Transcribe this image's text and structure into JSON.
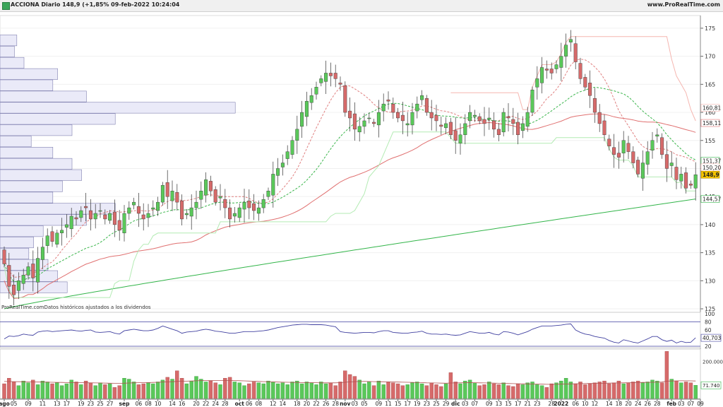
{
  "header": {
    "title": "ACCIONA Diario 148,9 (+1,85% 09-feb-2022 10:24:04",
    "brand": "www.ProRealTime.com"
  },
  "footnote": "ProRealTime.comDatos históricos ajustados a los dividendos",
  "colors": {
    "up": "#5ac85a",
    "down": "#d66a6a",
    "sma_long": "#33b54a",
    "sma_mid": "#e07070",
    "band_upper": "#f5b6b0",
    "band_lower": "#b3ebb3",
    "dash_red": "#e08080",
    "dash_green": "#39b54a",
    "volume_profile_fill": "#eaeaf8",
    "volume_profile_stroke": "#8080b0",
    "oscillator_line": "#4040a0",
    "oscillator_high": "#b05060"
  },
  "icons": {
    "app": "green-square-icon"
  },
  "chart_data": {
    "type": "candlestick",
    "price_axis": {
      "range": [
        124.5,
        176.5
      ],
      "ticks": [
        125,
        130,
        135,
        140,
        145,
        150,
        155,
        160,
        165,
        170,
        175
      ]
    },
    "x_labels": [
      {
        "i": 0,
        "t": "ago",
        "bold": true
      },
      {
        "i": 2,
        "t": "05"
      },
      {
        "i": 5,
        "t": "09"
      },
      {
        "i": 8,
        "t": "11"
      },
      {
        "i": 11,
        "t": "13"
      },
      {
        "i": 13,
        "t": "17"
      },
      {
        "i": 16,
        "t": "19"
      },
      {
        "i": 18,
        "t": "23"
      },
      {
        "i": 20,
        "t": "25"
      },
      {
        "i": 22,
        "t": "27"
      },
      {
        "i": 25,
        "t": "sep",
        "bold": true
      },
      {
        "i": 28,
        "t": "06"
      },
      {
        "i": 30,
        "t": "08"
      },
      {
        "i": 32,
        "t": "10"
      },
      {
        "i": 35,
        "t": "14"
      },
      {
        "i": 37,
        "t": "16"
      },
      {
        "i": 40,
        "t": "20"
      },
      {
        "i": 42,
        "t": "22"
      },
      {
        "i": 44,
        "t": "24"
      },
      {
        "i": 46,
        "t": "28"
      },
      {
        "i": 49,
        "t": "oct",
        "bold": true
      },
      {
        "i": 51,
        "t": "06"
      },
      {
        "i": 53,
        "t": "08"
      },
      {
        "i": 56,
        "t": "12"
      },
      {
        "i": 58,
        "t": "14"
      },
      {
        "i": 61,
        "t": "18"
      },
      {
        "i": 63,
        "t": "20"
      },
      {
        "i": 65,
        "t": "22"
      },
      {
        "i": 67,
        "t": "26"
      },
      {
        "i": 69,
        "t": "28"
      },
      {
        "i": 71,
        "t": "nov",
        "bold": true
      },
      {
        "i": 73,
        "t": "03"
      },
      {
        "i": 75,
        "t": "05"
      },
      {
        "i": 78,
        "t": "09"
      },
      {
        "i": 80,
        "t": "11"
      },
      {
        "i": 82,
        "t": "15"
      },
      {
        "i": 84,
        "t": "17"
      },
      {
        "i": 86,
        "t": "19"
      },
      {
        "i": 88,
        "t": "23"
      },
      {
        "i": 90,
        "t": "25"
      },
      {
        "i": 92,
        "t": "29"
      },
      {
        "i": 94,
        "t": "dic",
        "bold": true
      },
      {
        "i": 96,
        "t": "03"
      },
      {
        "i": 98,
        "t": "07"
      },
      {
        "i": 101,
        "t": "09"
      },
      {
        "i": 103,
        "t": "13"
      },
      {
        "i": 105,
        "t": "15"
      },
      {
        "i": 107,
        "t": "17"
      },
      {
        "i": 109,
        "t": "21"
      },
      {
        "i": 111,
        "t": "23"
      },
      {
        "i": 114,
        "t": "28"
      },
      {
        "i": 116,
        "t": "2022",
        "bold": true
      },
      {
        "i": 119,
        "t": "06"
      },
      {
        "i": 121,
        "t": "10"
      },
      {
        "i": 123,
        "t": "12"
      },
      {
        "i": 126,
        "t": "14"
      },
      {
        "i": 128,
        "t": "18"
      },
      {
        "i": 130,
        "t": "20"
      },
      {
        "i": 132,
        "t": "24"
      },
      {
        "i": 134,
        "t": "26"
      },
      {
        "i": 136,
        "t": "28"
      },
      {
        "i": 139,
        "t": "feb",
        "bold": true
      },
      {
        "i": 141,
        "t": "03"
      },
      {
        "i": 143,
        "t": "07"
      },
      {
        "i": 145,
        "t": "09"
      }
    ],
    "closes": [
      133,
      129,
      127.5,
      130,
      131,
      132.5,
      130.5,
      134,
      136,
      138,
      137,
      138.5,
      139,
      140,
      141.5,
      141,
      142.5,
      143,
      141,
      142,
      142.5,
      141,
      142,
      140,
      139,
      142,
      143,
      144,
      142,
      141,
      142,
      143,
      144,
      147,
      145,
      146,
      144,
      141,
      142,
      143,
      144,
      146,
      148,
      146,
      144,
      145,
      143,
      141,
      142,
      143,
      144,
      143,
      142.5,
      143,
      144.5,
      146,
      149,
      150,
      151,
      153,
      155,
      157,
      160,
      162,
      163,
      164.5,
      166,
      167,
      166.5,
      166,
      165,
      160,
      159,
      157,
      157.5,
      158.5,
      159,
      158,
      160,
      161.5,
      162,
      160,
      159,
      158.5,
      158,
      160,
      161.5,
      163,
      160,
      159,
      158.5,
      157.5,
      158,
      156,
      155,
      156,
      158,
      160,
      159.5,
      158.5,
      158,
      159,
      157,
      156,
      160,
      159,
      158,
      156,
      158,
      160,
      164,
      166,
      168,
      167.5,
      167,
      168.5,
      170,
      172,
      173,
      169,
      166,
      164.5,
      163,
      160,
      158,
      156,
      154,
      152.5,
      152,
      155,
      153,
      151,
      149,
      151,
      153,
      155,
      156,
      152.5,
      150,
      151,
      148,
      149,
      146.5,
      147,
      148.9
    ],
    "sma_long_series": {
      "range": [
        125,
        144.57
      ],
      "label": "144,57"
    },
    "sma_mid_series": {
      "range": [
        131.5,
        158.11
      ],
      "label": "158,11"
    },
    "band_upper_series": {
      "label": "160,81"
    },
    "band_mid_series": {
      "label": "150,20"
    },
    "band_lower_series": {
      "label": "151,37"
    },
    "last_price_label": "148,9",
    "volume_profile_rows": [
      {
        "price": 128.8,
        "vol": 0.28
      },
      {
        "price": 130.8,
        "vol": 0.24
      },
      {
        "price": 132.8,
        "vol": 0.2
      },
      {
        "price": 134.8,
        "vol": 0.12
      },
      {
        "price": 136.8,
        "vol": 0.14
      },
      {
        "price": 138.8,
        "vol": 0.18
      },
      {
        "price": 140.8,
        "vol": 0.36
      },
      {
        "price": 142.8,
        "vol": 0.48
      },
      {
        "price": 144.8,
        "vol": 0.22
      },
      {
        "price": 146.8,
        "vol": 0.26
      },
      {
        "price": 148.8,
        "vol": 0.34
      },
      {
        "price": 150.8,
        "vol": 0.3
      },
      {
        "price": 152.8,
        "vol": 0.22
      },
      {
        "price": 154.8,
        "vol": 0.13
      },
      {
        "price": 156.8,
        "vol": 0.3
      },
      {
        "price": 158.8,
        "vol": 0.48
      },
      {
        "price": 160.8,
        "vol": 0.98
      },
      {
        "price": 162.8,
        "vol": 0.36
      },
      {
        "price": 164.8,
        "vol": 0.22
      },
      {
        "price": 166.8,
        "vol": 0.24
      },
      {
        "price": 168.8,
        "vol": 0.1
      },
      {
        "price": 170.8,
        "vol": 0.06
      },
      {
        "price": 172.8,
        "vol": 0.07
      }
    ],
    "oscillator": {
      "range": [
        20,
        100
      ],
      "ticks": [
        20,
        60,
        80,
        100
      ],
      "value_label": "40,703",
      "values": [
        38,
        45,
        44,
        46,
        50,
        48,
        47,
        55,
        57,
        58,
        56,
        57,
        58,
        59,
        60,
        58,
        57,
        59,
        60,
        55,
        54,
        55,
        56,
        52,
        50,
        58,
        60,
        62,
        60,
        58,
        58,
        60,
        64,
        70,
        66,
        62,
        58,
        52,
        55,
        56,
        57,
        60,
        62,
        60,
        57,
        56,
        54,
        52,
        52,
        54,
        56,
        56,
        56,
        57,
        58,
        60,
        63,
        66,
        68,
        70,
        72,
        73,
        74,
        74,
        73,
        73,
        73,
        72,
        70,
        68,
        56,
        54,
        53,
        52,
        53,
        54,
        54,
        53,
        56,
        58,
        58,
        54,
        53,
        52,
        52,
        54,
        55,
        57,
        52,
        50,
        50,
        49,
        50,
        48,
        47,
        48,
        52,
        56,
        54,
        52,
        52,
        54,
        50,
        48,
        56,
        55,
        52,
        48,
        52,
        56,
        62,
        66,
        70,
        70,
        70,
        71,
        72,
        74,
        75,
        60,
        54,
        50,
        48,
        44,
        42,
        40,
        34,
        30,
        28,
        36,
        33,
        30,
        28,
        33,
        38,
        44,
        44,
        36,
        32,
        35,
        28,
        32,
        29,
        30,
        40.7
      ]
    },
    "volume": {
      "max": 260000,
      "ticks": [
        {
          "v": 200000,
          "t": "200.000"
        }
      ],
      "value_label": "71.740",
      "values": [
        80000,
        110000,
        90000,
        70000,
        95000,
        85000,
        100000,
        75000,
        95000,
        90000,
        80000,
        85000,
        70000,
        80000,
        100000,
        90000,
        75000,
        95000,
        85000,
        70000,
        85000,
        75000,
        80000,
        60000,
        70000,
        110000,
        105000,
        90000,
        75000,
        80000,
        85000,
        80000,
        90000,
        100000,
        115000,
        105000,
        150000,
        110000,
        80000,
        95000,
        120000,
        105000,
        90000,
        95000,
        85000,
        75000,
        110000,
        115000,
        90000,
        85000,
        70000,
        80000,
        90000,
        85000,
        80000,
        95000,
        90000,
        80000,
        85000,
        75000,
        90000,
        95000,
        80000,
        90000,
        85000,
        75000,
        90000,
        80000,
        85000,
        70000,
        90000,
        150000,
        130000,
        120000,
        100000,
        80000,
        90000,
        70000,
        95000,
        75000,
        90000,
        85000,
        80000,
        70000,
        75000,
        85000,
        90000,
        80000,
        70000,
        85000,
        75000,
        65000,
        80000,
        140000,
        90000,
        80000,
        95000,
        100000,
        85000,
        70000,
        75000,
        90000,
        80000,
        75000,
        85000,
        70000,
        65000,
        80000,
        75000,
        85000,
        90000,
        75000,
        70000,
        60000,
        80000,
        85000,
        95000,
        110000,
        90000,
        80000,
        90000,
        75000,
        80000,
        85000,
        90000,
        95000,
        80000,
        85000,
        95000,
        80000,
        85000,
        90000,
        95000,
        85000,
        90000,
        100000,
        95000,
        85000,
        255000,
        105000,
        95000,
        85000,
        90000,
        85000,
        71740
      ],
      "ma": [
        92000,
        92000,
        91500,
        91000,
        90500,
        90000,
        89500,
        89000,
        89000,
        88500,
        88000,
        87500,
        87000,
        86500,
        86500,
        86000,
        86000,
        85500,
        85000,
        84500,
        84000,
        83500,
        83000,
        82500,
        82500,
        83000,
        84000,
        85000,
        85500,
        86000,
        86500,
        87000,
        88000,
        89000,
        90000,
        91000,
        92500,
        93500,
        94000,
        95000,
        96000,
        97000,
        97500,
        98000,
        98000,
        98000,
        98000,
        97500,
        97000,
        96500,
        95500,
        94500,
        93500,
        92500,
        91500,
        91000,
        90000,
        89000,
        88500,
        88000,
        87500,
        87000,
        86500,
        86000,
        86000,
        85500,
        85000,
        85000,
        85000,
        85000,
        86000,
        88000,
        90000,
        91500,
        92000,
        92500,
        92000,
        91500,
        91000,
        90500,
        90000,
        89500,
        89000,
        88500,
        88000,
        87500,
        86500,
        86000,
        85000,
        84500,
        84000,
        83500,
        83000,
        84000,
        84500,
        85000,
        85500,
        86000,
        85500,
        85000,
        84500,
        84000,
        83500,
        82500,
        82000,
        81000,
        80500,
        80000,
        79500,
        79000,
        78500,
        78000,
        77500,
        77000,
        76500,
        77000,
        77500,
        78500,
        79000,
        80000,
        80500,
        81000,
        81500,
        82000,
        82500,
        83000,
        83500,
        84000,
        84500,
        85000,
        85500,
        86000,
        86500,
        87000,
        87500,
        88000,
        88500,
        89000,
        94000,
        95000,
        95500,
        96000,
        96000,
        95500,
        95000
      ]
    }
  }
}
